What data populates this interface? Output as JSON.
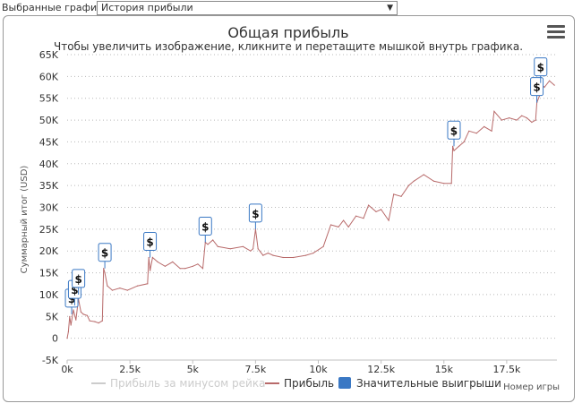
{
  "toolbar": {
    "label": "Выбранные графики:",
    "selected": "История прибыли"
  },
  "icons": {
    "menu": "hamburger-menu-icon",
    "dropdown": "triangle-down-icon",
    "marker": "dollar-flag-icon"
  },
  "colors": {
    "profit_line": "#b86a6a",
    "rake_line": "#cccccc",
    "marker_fill": "#3a78c4",
    "marker_border": "#3a78c4"
  },
  "chart_data": {
    "type": "line",
    "title": "Общая прибыль",
    "subtitle": "Чтобы увеличить изображение, кликните и перетащите мышкой внутрь графика.",
    "ylabel": "Суммарный итог (USD)",
    "xlabel": "Номер игры",
    "xlim": [
      0,
      19500
    ],
    "ylim": [
      -5000,
      65000
    ],
    "y_ticks": [
      "-5K",
      "0",
      "5K",
      "10K",
      "15K",
      "20K",
      "25K",
      "30K",
      "35K",
      "40K",
      "45K",
      "50K",
      "55K",
      "60K",
      "65K"
    ],
    "y_tick_values": [
      -5000,
      0,
      5000,
      10000,
      15000,
      20000,
      25000,
      30000,
      35000,
      40000,
      45000,
      50000,
      55000,
      60000,
      65000
    ],
    "x_ticks": [
      "0k",
      "2.5k",
      "5k",
      "7.5k",
      "10k",
      "12.5k",
      "15k",
      "17.5k"
    ],
    "x_tick_values": [
      0,
      2500,
      5000,
      7500,
      10000,
      12500,
      15000,
      17500
    ],
    "grid": "horizontal dotted",
    "legend_position": "bottom",
    "legend": [
      "Прибыль за минусом рейка",
      "Прибыль",
      "Значительные выигрыши"
    ],
    "series": [
      {
        "name": "Прибыль",
        "x": [
          0,
          50,
          100,
          150,
          250,
          350,
          450,
          550,
          650,
          800,
          900,
          1100,
          1250,
          1400,
          1450,
          1500,
          1600,
          1800,
          2100,
          2400,
          2800,
          3200,
          3250,
          3300,
          3400,
          3600,
          3900,
          4200,
          4500,
          4700,
          5000,
          5200,
          5400,
          5500,
          5600,
          5800,
          6000,
          6500,
          7000,
          7300,
          7400,
          7500,
          7600,
          7800,
          8000,
          8200,
          8600,
          9000,
          9500,
          9800,
          10200,
          10500,
          10800,
          11000,
          11200,
          11500,
          11800,
          12000,
          12300,
          12500,
          12800,
          13000,
          13300,
          13600,
          13800,
          14200,
          14600,
          15000,
          15300,
          15350,
          15400,
          15600,
          15800,
          16000,
          16300,
          16600,
          16900,
          17000,
          17300,
          17600,
          17900,
          18100,
          18300,
          18500,
          18650,
          18700,
          18800,
          18850,
          19000,
          19200,
          19400
        ],
        "y": [
          0,
          1500,
          5000,
          3000,
          6500,
          4200,
          9000,
          6000,
          5500,
          5200,
          4000,
          3800,
          3500,
          4000,
          16000,
          15000,
          12000,
          11000,
          11500,
          11000,
          12000,
          12500,
          18500,
          15500,
          18500,
          17500,
          16500,
          17500,
          16000,
          16000,
          16500,
          17000,
          16000,
          22000,
          21500,
          22500,
          21000,
          20500,
          21000,
          20000,
          20500,
          25000,
          20500,
          19000,
          19500,
          19000,
          18500,
          18500,
          19000,
          19500,
          21000,
          26000,
          25500,
          27000,
          25500,
          28000,
          27500,
          30500,
          29000,
          29500,
          27000,
          33000,
          32500,
          35000,
          36000,
          37500,
          36000,
          35500,
          35500,
          44000,
          43000,
          44000,
          45000,
          47500,
          47000,
          48500,
          47500,
          52000,
          50000,
          50500,
          50000,
          51000,
          50500,
          49500,
          50000,
          54000,
          55500,
          58500,
          57500,
          59000,
          58000
        ]
      }
    ],
    "big_wins": [
      {
        "x": 180,
        "y": 5500,
        "label": "$"
      },
      {
        "x": 300,
        "y": 7500,
        "label": "$"
      },
      {
        "x": 450,
        "y": 10000,
        "label": "$"
      },
      {
        "x": 1500,
        "y": 16000,
        "label": "$"
      },
      {
        "x": 3300,
        "y": 18500,
        "label": "$"
      },
      {
        "x": 5500,
        "y": 22000,
        "label": "$"
      },
      {
        "x": 7500,
        "y": 25000,
        "label": "$"
      },
      {
        "x": 15400,
        "y": 44000,
        "label": "$"
      },
      {
        "x": 18700,
        "y": 54000,
        "label": "$"
      },
      {
        "x": 18850,
        "y": 58500,
        "label": "$"
      }
    ]
  }
}
